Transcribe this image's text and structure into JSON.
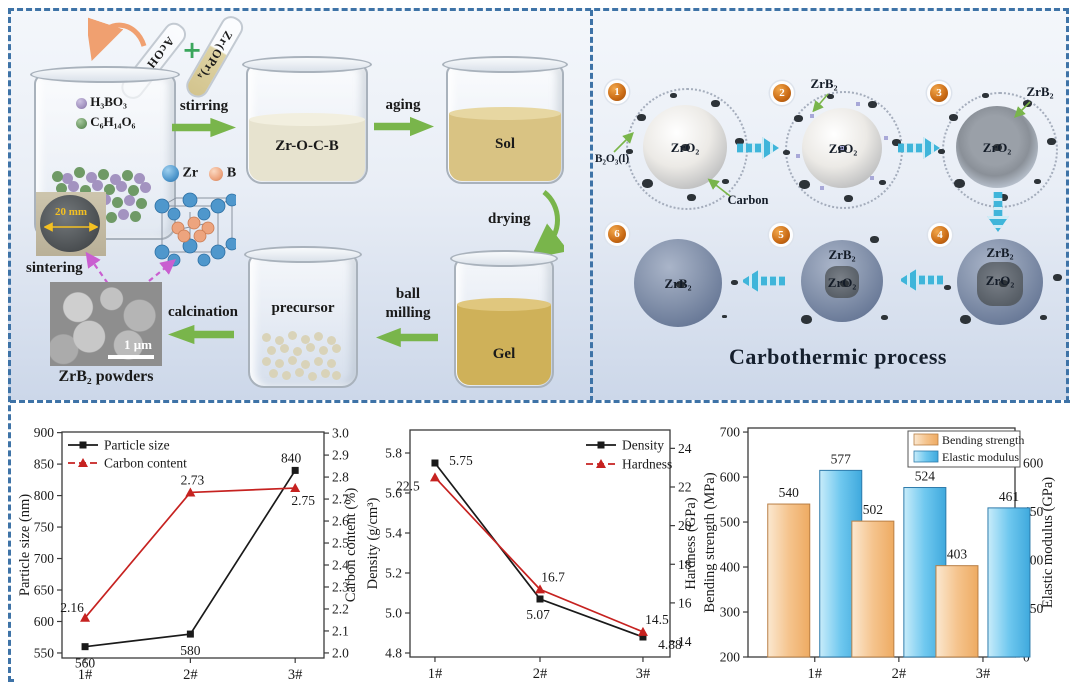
{
  "figure": {
    "left": {
      "tube_acoh": "AcOH",
      "tube_zropr": "Zr(OPr)₄",
      "plus": "+",
      "reagent1": "H₃BO₃",
      "reagent2": "C₆H₁₄O₆",
      "step_stirring": "stirring",
      "beaker_zrocb": "Zr-O-C-B",
      "step_aging": "aging",
      "beaker_sol": "Sol",
      "step_drying": "drying",
      "beaker_gel": "Gel",
      "step_ball1": "ball",
      "step_ball2": "milling",
      "beaker_precursor": "precursor",
      "step_calcination": "calcination",
      "legend_zr": "Zr",
      "legend_b": "B",
      "disc": "20 mm",
      "step_sintering": "sintering",
      "sem_scale": "1 μm",
      "sem_caption": "ZrB₂ powders"
    },
    "right": {
      "title": "Carbothermic process",
      "badge1": "1",
      "badge2": "2",
      "badge3": "3",
      "badge4": "4",
      "badge5": "5",
      "badge6": "6",
      "zro2": "ZrO₂",
      "zrb2": "ZrB₂",
      "b2o3": "B₂O₃(l)",
      "carbon": "Carbon"
    }
  },
  "chart_data": [
    {
      "type": "line",
      "categories": [
        "1#",
        "2#",
        "3#"
      ],
      "ylabel_left": "Particle size (nm)",
      "ylabel_right": "Carbon content (%)",
      "ylim_left": [
        542,
        901
      ],
      "ylim_right": [
        1.977,
        3.005
      ],
      "yticks_left": [
        "550",
        "600",
        "650",
        "700",
        "750",
        "800",
        "850",
        "900"
      ],
      "yticks_right": [
        "2.0",
        "2.1",
        "2.2",
        "2.3",
        "2.4",
        "2.5",
        "2.6",
        "2.7",
        "2.8",
        "2.9",
        "3.0"
      ],
      "legend_pos": "top-left",
      "series": [
        {
          "name": "Particle size",
          "axis": "left",
          "color": "#1a1a1a",
          "marker": "square",
          "values": [
            560,
            580,
            840
          ],
          "labels": [
            "560",
            "580",
            "840"
          ],
          "label_offsets": [
            [
              0,
              17
            ],
            [
              0,
              17
            ],
            [
              -4,
              -12
            ]
          ]
        },
        {
          "name": "Carbon content",
          "axis": "right",
          "color": "#c62220",
          "marker": "triangle",
          "values": [
            2.16,
            2.73,
            2.75
          ],
          "labels": [
            "2.16",
            "2.73",
            "2.75"
          ],
          "label_offsets": [
            [
              -13,
              -10
            ],
            [
              2,
              -12
            ],
            [
              8,
              13
            ]
          ]
        }
      ]
    },
    {
      "type": "line",
      "categories": [
        "1#",
        "2#",
        "3#"
      ],
      "ylabel_left": "Density (g/cm³)",
      "ylabel_right": "Hardness (GPa)",
      "ylim_left": [
        4.78,
        5.915
      ],
      "ylim_right": [
        13.2,
        24.95
      ],
      "yticks_left": [
        "4.8",
        "5.0",
        "5.2",
        "5.4",
        "5.6",
        "5.8"
      ],
      "yticks_right": [
        "14",
        "16",
        "18",
        "20",
        "22",
        "24"
      ],
      "legend_pos": "top-right",
      "series": [
        {
          "name": "Density",
          "axis": "left",
          "color": "#1a1a1a",
          "marker": "square",
          "values": [
            5.75,
            5.07,
            4.88
          ],
          "labels": [
            "5.75",
            "5.07",
            "4.88"
          ],
          "label_offsets": [
            [
              26,
              -2
            ],
            [
              -2,
              16
            ],
            [
              27,
              8
            ]
          ]
        },
        {
          "name": "Hardness",
          "axis": "right",
          "color": "#c62220",
          "marker": "triangle",
          "values": [
            22.5,
            16.7,
            14.5
          ],
          "labels": [
            "22.5",
            "16.7",
            "14.5"
          ],
          "label_offsets": [
            [
              -27,
              9
            ],
            [
              13,
              -12
            ],
            [
              14,
              -12
            ]
          ]
        }
      ]
    },
    {
      "type": "bar",
      "categories": [
        "1#",
        "2#",
        "3#"
      ],
      "ylabel_left": "Bending strength (MPa)",
      "ylabel_right": "Elastic modulus (GPa)",
      "ylim_left": [
        200,
        709
      ],
      "ylim_right": [
        0,
        708
      ],
      "yticks_left": [
        "200",
        "300",
        "400",
        "500",
        "600",
        "700"
      ],
      "yticks_right": [
        "0",
        "150",
        "300",
        "450",
        "600"
      ],
      "legend_pos": "top-right-box",
      "series": [
        {
          "name": "Bending strength",
          "axis": "left",
          "fill": [
            "#fbe8d0",
            "#f5c48e",
            "#eeab62"
          ],
          "edge": "#b97f45",
          "label_color": "#c87d2a",
          "values": [
            540,
            502,
            403
          ],
          "labels": [
            "540",
            "502",
            "403"
          ]
        },
        {
          "name": "Elastic modulus",
          "axis": "right",
          "fill": [
            "#c8ecfa",
            "#6fc8ef",
            "#3fa9dd"
          ],
          "edge": "#2e7bab",
          "label_color": "#3a3a9d",
          "values": [
            577,
            524,
            461
          ],
          "labels": [
            "577",
            "524",
            "461"
          ]
        }
      ]
    }
  ]
}
